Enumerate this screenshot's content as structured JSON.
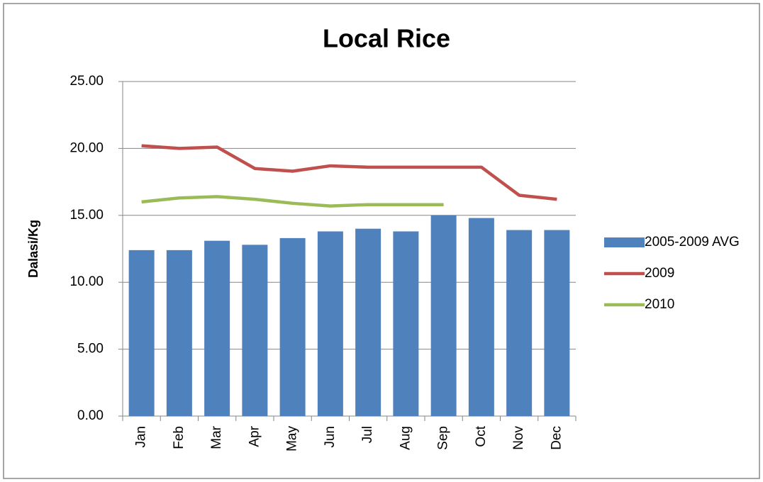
{
  "chart_data": {
    "type": "bar",
    "title": "Local Rice",
    "y_label": "Dalasi/Kg",
    "categories": [
      "Jan",
      "Feb",
      "Mar",
      "Apr",
      "May",
      "Jun",
      "Jul",
      "Aug",
      "Sep",
      "Oct",
      "Nov",
      "Dec"
    ],
    "series": [
      {
        "name": "2005-2009 AVG",
        "type": "bar",
        "color": "#4f81bd",
        "values": [
          12.4,
          12.4,
          13.1,
          12.8,
          13.3,
          13.8,
          14.0,
          13.8,
          15.0,
          14.8,
          13.9,
          13.9
        ]
      },
      {
        "name": "2009",
        "type": "line",
        "color": "#c0504d",
        "values": [
          20.2,
          20.0,
          20.1,
          18.5,
          18.3,
          18.7,
          18.6,
          18.6,
          18.6,
          18.6,
          16.5,
          16.2
        ]
      },
      {
        "name": "2010",
        "type": "line",
        "color": "#9bbb59",
        "values": [
          16.0,
          16.3,
          16.4,
          16.2,
          15.9,
          15.7,
          15.8,
          15.8,
          15.8,
          null,
          null,
          null
        ]
      }
    ],
    "ylim": [
      0,
      25
    ],
    "yticks": [
      {
        "value": 0,
        "label": "0.00"
      },
      {
        "value": 5,
        "label": "5.00"
      },
      {
        "value": 10,
        "label": "10.00"
      },
      {
        "value": 15,
        "label": "15.00"
      },
      {
        "value": 20,
        "label": "20.00"
      },
      {
        "value": 25,
        "label": "25.00"
      }
    ],
    "grid": true,
    "legend": "right"
  }
}
